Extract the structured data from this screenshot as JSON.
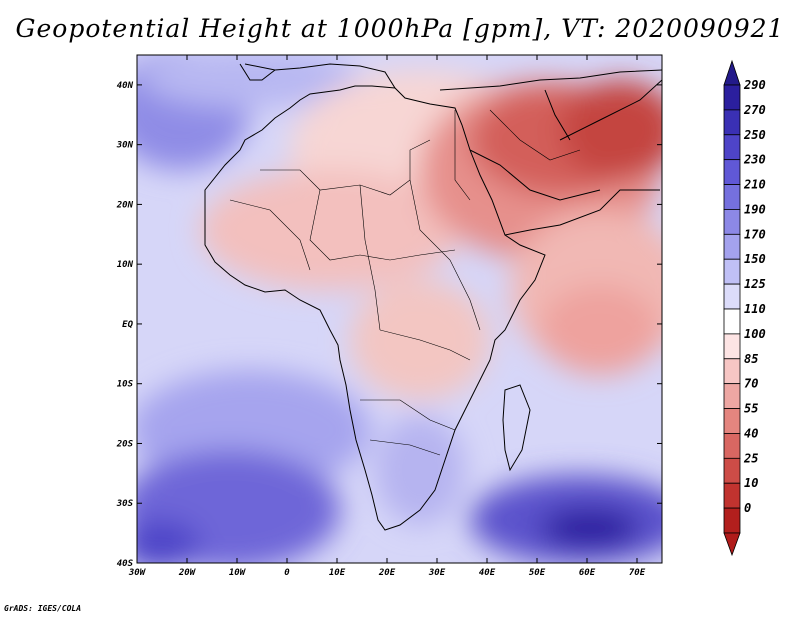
{
  "title": "Geopotential Height at 1000hPa [gpm], VT: 2020090921",
  "footer": "GrADS: IGES/COLA",
  "map": {
    "lat_range": [
      -40,
      45
    ],
    "lon_range": [
      -30,
      75
    ],
    "lat_labels": [
      "40N",
      "30N",
      "20N",
      "10N",
      "EQ",
      "10S",
      "20S",
      "30S",
      "40S"
    ],
    "lat_values": [
      40,
      30,
      20,
      10,
      0,
      -10,
      -20,
      -30,
      -40
    ],
    "lon_labels": [
      "30W",
      "20W",
      "10W",
      "0",
      "10E",
      "20E",
      "30E",
      "40E",
      "50E",
      "60E",
      "70E"
    ],
    "lon_values": [
      -30,
      -20,
      -10,
      0,
      10,
      20,
      30,
      40,
      50,
      60,
      70
    ]
  },
  "colorbar": {
    "labels": [
      "290",
      "270",
      "250",
      "230",
      "210",
      "190",
      "170",
      "150",
      "125",
      "110",
      "100",
      "85",
      "70",
      "55",
      "40",
      "25",
      "10",
      "0"
    ],
    "colors": [
      "#2b1f9e",
      "#3a30b4",
      "#4e44c8",
      "#6058d6",
      "#7570de",
      "#8c88e6",
      "#a4a2ee",
      "#c0c0f6",
      "#dcdcfa",
      "#ffffff",
      "#fde4e4",
      "#f7c6c4",
      "#eea7a3",
      "#e4857f",
      "#d96762",
      "#cd4c47",
      "#c1332f",
      "#b21f1d"
    ],
    "top_color": "#231a8a",
    "bottom_color": "#b01b1a"
  }
}
